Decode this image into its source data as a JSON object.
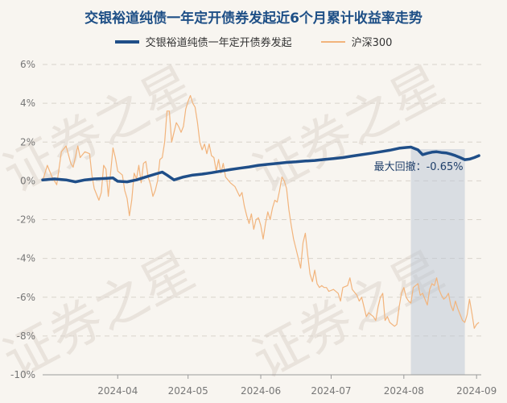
{
  "chart_data": {
    "type": "line",
    "title": "交银裕道纯债一年定开债券发起近6个月累计收益率走势",
    "ylim": [
      -10,
      6
    ],
    "y_ticks": [
      "6%",
      "4%",
      "2%",
      "0%",
      "-2%",
      "-4%",
      "-6%",
      "-8%",
      "-10%"
    ],
    "y_tick_values": [
      6,
      4,
      2,
      0,
      -2,
      -4,
      -6,
      -8,
      -10
    ],
    "x_ticks": [
      "2024-04",
      "2024-05",
      "2024-06",
      "2024-07",
      "2024-08",
      "2024-09"
    ],
    "x_tick_positions": [
      32,
      62,
      93,
      123,
      154,
      185
    ],
    "x_range": [
      0,
      187
    ],
    "watermark": "证券之星",
    "max_drawdown": {
      "label": "最大回撤：-0.65%",
      "start_x": 157,
      "end_x": 180
    },
    "series": [
      {
        "name": "交银裕道纯债一年定开债券发起",
        "color": "#1f4e88",
        "points": [
          [
            0,
            0.05
          ],
          [
            5,
            0.1
          ],
          [
            10,
            0.05
          ],
          [
            14,
            -0.05
          ],
          [
            18,
            0.05
          ],
          [
            22,
            0.1
          ],
          [
            26,
            0.12
          ],
          [
            30,
            0.15
          ],
          [
            32,
            -0.02
          ],
          [
            36,
            -0.05
          ],
          [
            40,
            0.05
          ],
          [
            44,
            0.2
          ],
          [
            48,
            0.35
          ],
          [
            51,
            0.45
          ],
          [
            53,
            0.3
          ],
          [
            56,
            0.05
          ],
          [
            60,
            0.2
          ],
          [
            64,
            0.3
          ],
          [
            68,
            0.35
          ],
          [
            72,
            0.42
          ],
          [
            76,
            0.5
          ],
          [
            80,
            0.58
          ],
          [
            84,
            0.65
          ],
          [
            88,
            0.72
          ],
          [
            92,
            0.8
          ],
          [
            96,
            0.85
          ],
          [
            100,
            0.9
          ],
          [
            104,
            0.95
          ],
          [
            108,
            0.98
          ],
          [
            112,
            1.02
          ],
          [
            116,
            1.05
          ],
          [
            120,
            1.1
          ],
          [
            124,
            1.15
          ],
          [
            128,
            1.2
          ],
          [
            132,
            1.28
          ],
          [
            136,
            1.35
          ],
          [
            140,
            1.42
          ],
          [
            144,
            1.5
          ],
          [
            148,
            1.58
          ],
          [
            152,
            1.68
          ],
          [
            155,
            1.72
          ],
          [
            157,
            1.74
          ],
          [
            160,
            1.6
          ],
          [
            162,
            1.35
          ],
          [
            164,
            1.42
          ],
          [
            166,
            1.48
          ],
          [
            168,
            1.5
          ],
          [
            170,
            1.46
          ],
          [
            172,
            1.44
          ],
          [
            174,
            1.38
          ],
          [
            176,
            1.3
          ],
          [
            178,
            1.2
          ],
          [
            180,
            1.09
          ],
          [
            182,
            1.12
          ],
          [
            184,
            1.2
          ],
          [
            186,
            1.3
          ]
        ]
      },
      {
        "name": "沪深300",
        "color": "#f2b47c",
        "points": [
          [
            0,
            0
          ],
          [
            2,
            0.8
          ],
          [
            4,
            0.2
          ],
          [
            6,
            -0.2
          ],
          [
            8,
            1.5
          ],
          [
            10,
            1.8
          ],
          [
            12,
            0.9
          ],
          [
            13,
            0.7
          ],
          [
            15,
            1.8
          ],
          [
            16,
            1.2
          ],
          [
            18,
            1.5
          ],
          [
            20,
            1.4
          ],
          [
            21,
            0.3
          ],
          [
            22,
            -0.4
          ],
          [
            24,
            -1.0
          ],
          [
            25,
            -0.6
          ],
          [
            26,
            0.8
          ],
          [
            27,
            0.6
          ],
          [
            28,
            -0.8
          ],
          [
            30,
            1.7
          ],
          [
            31,
            1.2
          ],
          [
            32,
            0.5
          ],
          [
            34,
            0.3
          ],
          [
            35,
            -0.5
          ],
          [
            36,
            -0.9
          ],
          [
            37,
            -1.8
          ],
          [
            38,
            -1.0
          ],
          [
            39,
            0.4
          ],
          [
            40,
            0.1
          ],
          [
            41,
            0.8
          ],
          [
            42,
            -0.1
          ],
          [
            43,
            0.9
          ],
          [
            44,
            1.0
          ],
          [
            45,
            0.2
          ],
          [
            46,
            -0.2
          ],
          [
            47,
            -0.8
          ],
          [
            48,
            -0.5
          ],
          [
            49,
            0.0
          ],
          [
            50,
            1.1
          ],
          [
            51,
            1.2
          ],
          [
            52,
            2.0
          ],
          [
            53,
            3.6
          ],
          [
            54,
            3.6
          ],
          [
            55,
            2.0
          ],
          [
            56,
            2.5
          ],
          [
            57,
            3.0
          ],
          [
            58,
            2.8
          ],
          [
            59,
            2.5
          ],
          [
            60,
            2.8
          ],
          [
            61,
            3.7
          ],
          [
            62,
            4.1
          ],
          [
            63,
            4.4
          ],
          [
            64,
            4.0
          ],
          [
            65,
            3.8
          ],
          [
            66,
            3.0
          ],
          [
            67,
            2.0
          ],
          [
            68,
            1.6
          ],
          [
            69,
            1.9
          ],
          [
            70,
            1.4
          ],
          [
            71,
            1.9
          ],
          [
            72,
            1.3
          ],
          [
            73,
            1.2
          ],
          [
            74,
            0.5
          ],
          [
            75,
            1.1
          ],
          [
            76,
            0.4
          ],
          [
            77,
            0.9
          ],
          [
            78,
            0.2
          ],
          [
            80,
            -0.1
          ],
          [
            82,
            -0.3
          ],
          [
            84,
            -0.8
          ],
          [
            85,
            -0.6
          ],
          [
            86,
            -1.3
          ],
          [
            87,
            -1.8
          ],
          [
            88,
            -2.2
          ],
          [
            89,
            -1.7
          ],
          [
            90,
            -2.5
          ],
          [
            91,
            -2.0
          ],
          [
            92,
            -1.9
          ],
          [
            93,
            -2.3
          ],
          [
            94,
            -3.0
          ],
          [
            95,
            -2.2
          ],
          [
            96,
            -1.6
          ],
          [
            97,
            -2.0
          ],
          [
            98,
            -1.4
          ],
          [
            99,
            -1.0
          ],
          [
            100,
            -1.1
          ],
          [
            101,
            -0.5
          ],
          [
            102,
            0.2
          ],
          [
            103,
            0.0
          ],
          [
            104,
            -0.4
          ],
          [
            105,
            -1.5
          ],
          [
            106,
            -2.3
          ],
          [
            107,
            -3.0
          ],
          [
            108,
            -3.5
          ],
          [
            109,
            -4.0
          ],
          [
            110,
            -4.5
          ],
          [
            111,
            -3.2
          ],
          [
            112,
            -2.7
          ],
          [
            113,
            -3.8
          ],
          [
            114,
            -4.8
          ],
          [
            115,
            -5.2
          ],
          [
            116,
            -4.6
          ],
          [
            117,
            -5.3
          ],
          [
            118,
            -5.5
          ],
          [
            119,
            -5.4
          ],
          [
            120,
            -5.5
          ],
          [
            121,
            -5.5
          ],
          [
            122,
            -5.7
          ],
          [
            124,
            -5.6
          ],
          [
            126,
            -5.8
          ],
          [
            127,
            -6.2
          ],
          [
            128,
            -5.5
          ],
          [
            130,
            -5.4
          ],
          [
            131,
            -5.0
          ],
          [
            132,
            -5.6
          ],
          [
            134,
            -5.9
          ],
          [
            135,
            -6.2
          ],
          [
            136,
            -6.0
          ],
          [
            137,
            -6.5
          ],
          [
            138,
            -7.0
          ],
          [
            139,
            -6.8
          ],
          [
            140,
            -6.9
          ],
          [
            141,
            -7.0
          ],
          [
            142,
            -7.2
          ],
          [
            143,
            -6.5
          ],
          [
            144,
            -6.0
          ],
          [
            145,
            -5.8
          ],
          [
            146,
            -7.2
          ],
          [
            147,
            -7.0
          ],
          [
            148,
            -7.3
          ],
          [
            150,
            -7.5
          ],
          [
            151,
            -7.4
          ],
          [
            152,
            -6.5
          ],
          [
            153,
            -5.8
          ],
          [
            154,
            -5.5
          ],
          [
            155,
            -6.0
          ],
          [
            156,
            -6.2
          ],
          [
            157,
            -6.3
          ],
          [
            158,
            -5.5
          ],
          [
            160,
            -5.3
          ],
          [
            161,
            -5.9
          ],
          [
            162,
            -5.8
          ],
          [
            164,
            -6.4
          ],
          [
            165,
            -5.6
          ],
          [
            166,
            -5.3
          ],
          [
            167,
            -5.4
          ],
          [
            168,
            -5.0
          ],
          [
            169,
            -5.6
          ],
          [
            170,
            -5.9
          ],
          [
            171,
            -6.1
          ],
          [
            172,
            -6.0
          ],
          [
            173,
            -5.8
          ],
          [
            174,
            -6.4
          ],
          [
            175,
            -6.7
          ],
          [
            176,
            -6.2
          ],
          [
            177,
            -6.6
          ],
          [
            178,
            -6.9
          ],
          [
            179,
            -7.2
          ],
          [
            180,
            -7.3
          ],
          [
            181,
            -6.9
          ],
          [
            182,
            -6.1
          ],
          [
            183,
            -6.8
          ],
          [
            184,
            -7.6
          ],
          [
            185,
            -7.4
          ],
          [
            186,
            -7.3
          ]
        ]
      }
    ]
  }
}
